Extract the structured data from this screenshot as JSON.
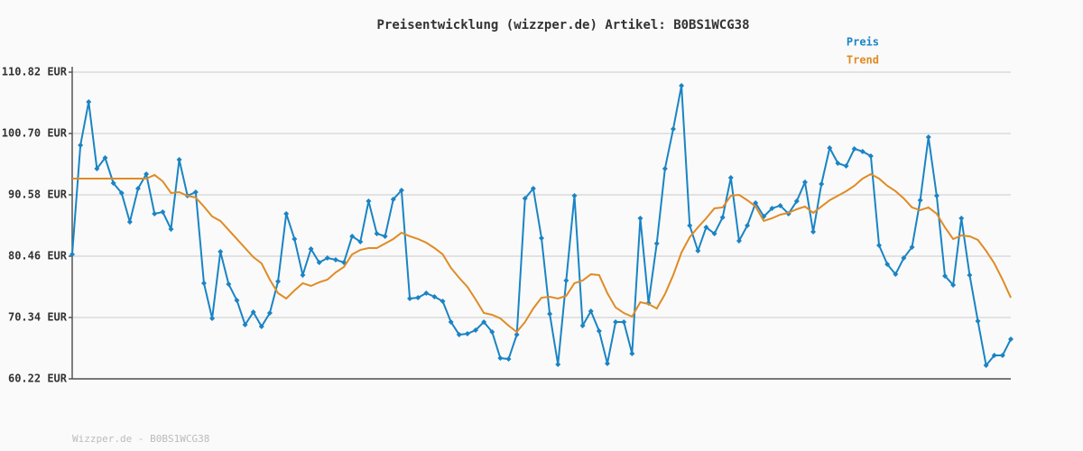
{
  "chart_data": {
    "type": "line",
    "title": "Preisentwicklung (wizzper.de) Artikel: B0BS1WCG38",
    "footer": "Wizzper.de - B0BS1WCG38",
    "legend": "top-right",
    "grid": true,
    "ylim": [
      60.22,
      110.82
    ],
    "yticks": [
      {
        "value": 60.22,
        "label": "60.22 EUR"
      },
      {
        "value": 70.34,
        "label": "70.34 EUR"
      },
      {
        "value": 80.46,
        "label": "80.46 EUR"
      },
      {
        "value": 90.58,
        "label": "90.58 EUR"
      },
      {
        "value": 100.7,
        "label": "100.70 EUR"
      },
      {
        "value": 110.82,
        "label": "110.82 EUR"
      }
    ],
    "series": [
      {
        "name": "Preis",
        "color": "#1a84c4",
        "markers": true,
        "values": [
          80.76,
          98.77,
          105.91,
          94.9,
          96.68,
          92.52,
          90.88,
          86.12,
          91.62,
          94.0,
          87.46,
          87.75,
          84.93,
          96.39,
          90.43,
          91.03,
          76.0,
          70.19,
          81.21,
          75.85,
          73.17,
          69.15,
          71.23,
          68.85,
          71.08,
          76.29,
          87.46,
          83.29,
          77.34,
          81.65,
          79.42,
          80.16,
          79.87,
          79.42,
          83.74,
          82.84,
          89.54,
          84.18,
          83.74,
          89.84,
          91.33,
          73.47,
          73.61,
          74.36,
          73.76,
          73.02,
          69.6,
          67.51,
          67.66,
          68.26,
          69.6,
          67.96,
          63.64,
          63.49,
          67.51,
          89.99,
          91.62,
          83.44,
          70.94,
          62.6,
          76.44,
          90.43,
          69.0,
          71.38,
          68.11,
          62.75,
          69.6,
          69.6,
          64.39,
          86.71,
          72.72,
          82.54,
          94.9,
          101.45,
          108.59,
          85.52,
          81.35,
          85.22,
          84.18,
          86.86,
          93.41,
          82.99,
          85.52,
          89.24,
          87.01,
          88.35,
          88.8,
          87.46,
          89.54,
          92.67,
          84.48,
          92.37,
          98.32,
          95.79,
          95.34,
          98.17,
          97.73,
          96.98,
          82.25,
          79.12,
          77.48,
          80.16,
          81.95,
          89.69,
          100.11,
          90.43,
          77.19,
          75.7,
          86.71,
          77.34,
          69.75,
          62.45,
          64.09,
          64.09,
          66.77
        ]
      },
      {
        "name": "Trend",
        "color": "#e08b24",
        "markers": false,
        "values": [
          93.26,
          93.26,
          93.26,
          93.26,
          93.26,
          93.26,
          93.26,
          93.26,
          93.26,
          93.26,
          93.86,
          92.81,
          90.88,
          91.03,
          90.43,
          90.13,
          88.65,
          87.01,
          86.27,
          84.78,
          83.29,
          81.8,
          80.31,
          79.27,
          76.59,
          74.36,
          73.47,
          74.81,
          76.0,
          75.55,
          76.15,
          76.59,
          77.78,
          78.68,
          80.76,
          81.5,
          81.8,
          81.8,
          82.54,
          83.29,
          84.33,
          83.74,
          83.29,
          82.69,
          81.8,
          80.76,
          78.53,
          76.89,
          75.4,
          73.32,
          71.08,
          70.79,
          70.19,
          69.0,
          67.96,
          69.6,
          71.83,
          73.61,
          73.76,
          73.47,
          73.91,
          76.0,
          76.44,
          77.48,
          77.34,
          74.36,
          72.0,
          71.08,
          70.49,
          72.87,
          72.57,
          71.83,
          74.21,
          77.34,
          81.06,
          83.59,
          85.22,
          86.71,
          88.35,
          88.5,
          90.43,
          90.58,
          89.69,
          88.65,
          86.27,
          86.71,
          87.31,
          87.61,
          88.2,
          88.65,
          87.61,
          88.65,
          89.69,
          90.43,
          91.18,
          92.07,
          93.26,
          94.0,
          93.26,
          92.07,
          91.18,
          89.99,
          88.5,
          88.05,
          88.5,
          87.46,
          85.22,
          83.29,
          83.88,
          83.74,
          83.14,
          81.35,
          79.27,
          76.59,
          73.61
        ]
      }
    ]
  }
}
